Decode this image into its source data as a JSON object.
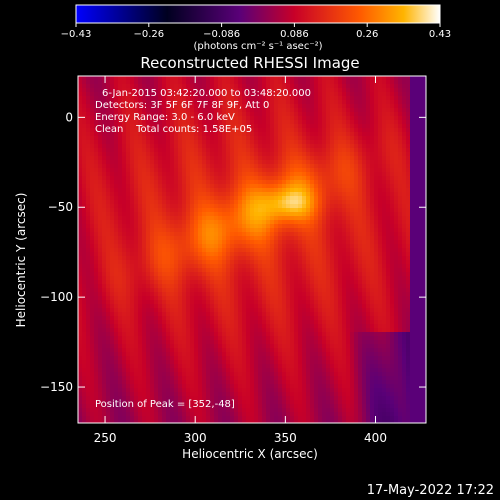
{
  "chart_data": {
    "type": "heatmap",
    "title": "Reconstructed RHESSI Image",
    "xlabel": "Heliocentric X (arcsec)",
    "ylabel": "Heliocentric Y (arcsec)",
    "xlim": [
      235,
      428
    ],
    "ylim": [
      -170,
      23
    ],
    "x_ticks": [
      "250",
      "300",
      "350",
      "400"
    ],
    "x_tick_values": [
      250,
      300,
      350,
      400
    ],
    "y_ticks": [
      "0",
      "−50",
      "−100",
      "−150"
    ],
    "y_tick_values": [
      0,
      -50,
      -100,
      -150
    ],
    "colorbar": {
      "ticks": [
        "−0.43",
        "−0.26",
        "−0.086",
        "0.086",
        "0.26",
        "0.43"
      ],
      "range": [
        -0.43,
        0.43
      ],
      "unit_label": "(photons cm⁻² s⁻¹ asec⁻²)",
      "colors": [
        "#0000ff",
        "#000020",
        "#5a0078",
        "#c80028",
        "#ff5a00",
        "#ffb400",
        "#ffffff"
      ]
    },
    "annotations": [
      "6-Jan-2015 03:42:20.000 to 03:48:20.000",
      "Detectors: 3F 5F 6F 7F 8F 9F, Att 0",
      "Energy Range: 3.0 - 6.0 keV",
      "Clean    Total counts: 1.58E+05"
    ],
    "peak_label": "Position of Peak = [352,-48]",
    "peak": {
      "x": 352,
      "y": -48,
      "value": 0.43
    },
    "source": {
      "cx": 330,
      "cy": -55,
      "angle_deg": 27,
      "sigma_major": 42,
      "sigma_minor": 12
    }
  },
  "footer": {
    "timestamp": "17-May-2022 17:22"
  }
}
